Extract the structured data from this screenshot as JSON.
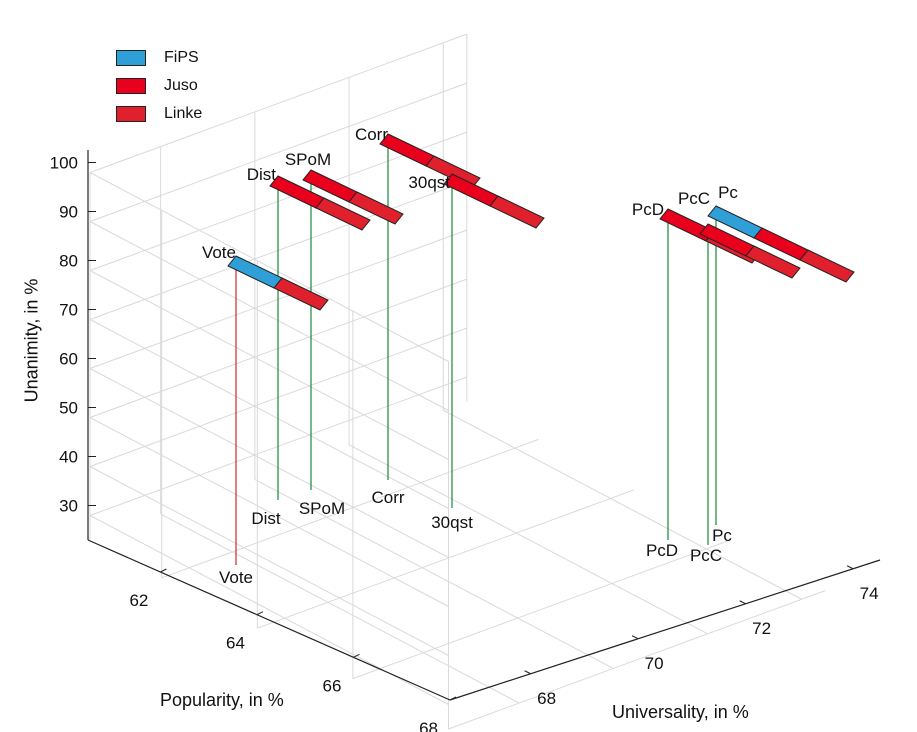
{
  "chart_data": {
    "type": "3d-bar",
    "title": "",
    "xlabel": "Universality, in %",
    "ylabel": "Popularity, in %",
    "zlabel": "Unanimity, in %",
    "x_ticks": [
      "68",
      "70",
      "72",
      "74"
    ],
    "y_ticks": [
      "62",
      "64",
      "66",
      "68"
    ],
    "z_ticks": [
      "30",
      "40",
      "50",
      "60",
      "70",
      "80",
      "90",
      "100"
    ],
    "xlim": [
      66.5,
      74.5
    ],
    "ylim": [
      60.5,
      68
    ],
    "zlim": [
      25,
      100
    ],
    "grid": true,
    "legend_position": "top-left",
    "legend": [
      {
        "name": "FiPS",
        "color": "#2f9fd7"
      },
      {
        "name": "Juso",
        "color": "#e8001c"
      },
      {
        "name": "Linke",
        "color": "#e0202c"
      }
    ],
    "points": [
      {
        "label": "Vote",
        "universality": 66.8,
        "popularity": 61.6,
        "unanimity": 80,
        "segments": [
          "FiPS",
          "Linke"
        ],
        "stem_color": "#d62728"
      },
      {
        "label": "Dist",
        "universality": 66.9,
        "popularity": 63.6,
        "unanimity": 97,
        "segments": [
          "Juso",
          "Linke"
        ],
        "stem_color": "#1a8a3a"
      },
      {
        "label": "SPoM",
        "universality": 67.5,
        "popularity": 63.5,
        "unanimity": 97,
        "segments": [
          "Juso",
          "Linke"
        ],
        "stem_color": "#1a8a3a"
      },
      {
        "label": "Corr",
        "universality": 68.4,
        "popularity": 63.4,
        "unanimity": 100,
        "segments": [
          "Juso",
          "Linke"
        ],
        "stem_color": "#1a8a3a"
      },
      {
        "label": "30qst",
        "universality": 68.8,
        "popularity": 64.7,
        "unanimity": 99,
        "segments": [
          "Juso",
          "Linke"
        ],
        "stem_color": "#1a8a3a"
      },
      {
        "label": "PcD",
        "universality": 72.3,
        "popularity": 65.7,
        "unanimity": 97,
        "segments": [
          "Juso",
          "Linke"
        ],
        "stem_color": "#1a8a3a"
      },
      {
        "label": "PcC",
        "universality": 72.7,
        "popularity": 65.9,
        "unanimity": 97,
        "segments": [
          "Juso",
          "Linke"
        ],
        "stem_color": "#1a8a3a"
      },
      {
        "label": "Pc",
        "universality": 72.9,
        "popularity": 65.5,
        "unanimity": 98,
        "segments": [
          "FiPS",
          "Juso",
          "Linke"
        ],
        "stem_color": "#1a8a3a"
      }
    ]
  }
}
